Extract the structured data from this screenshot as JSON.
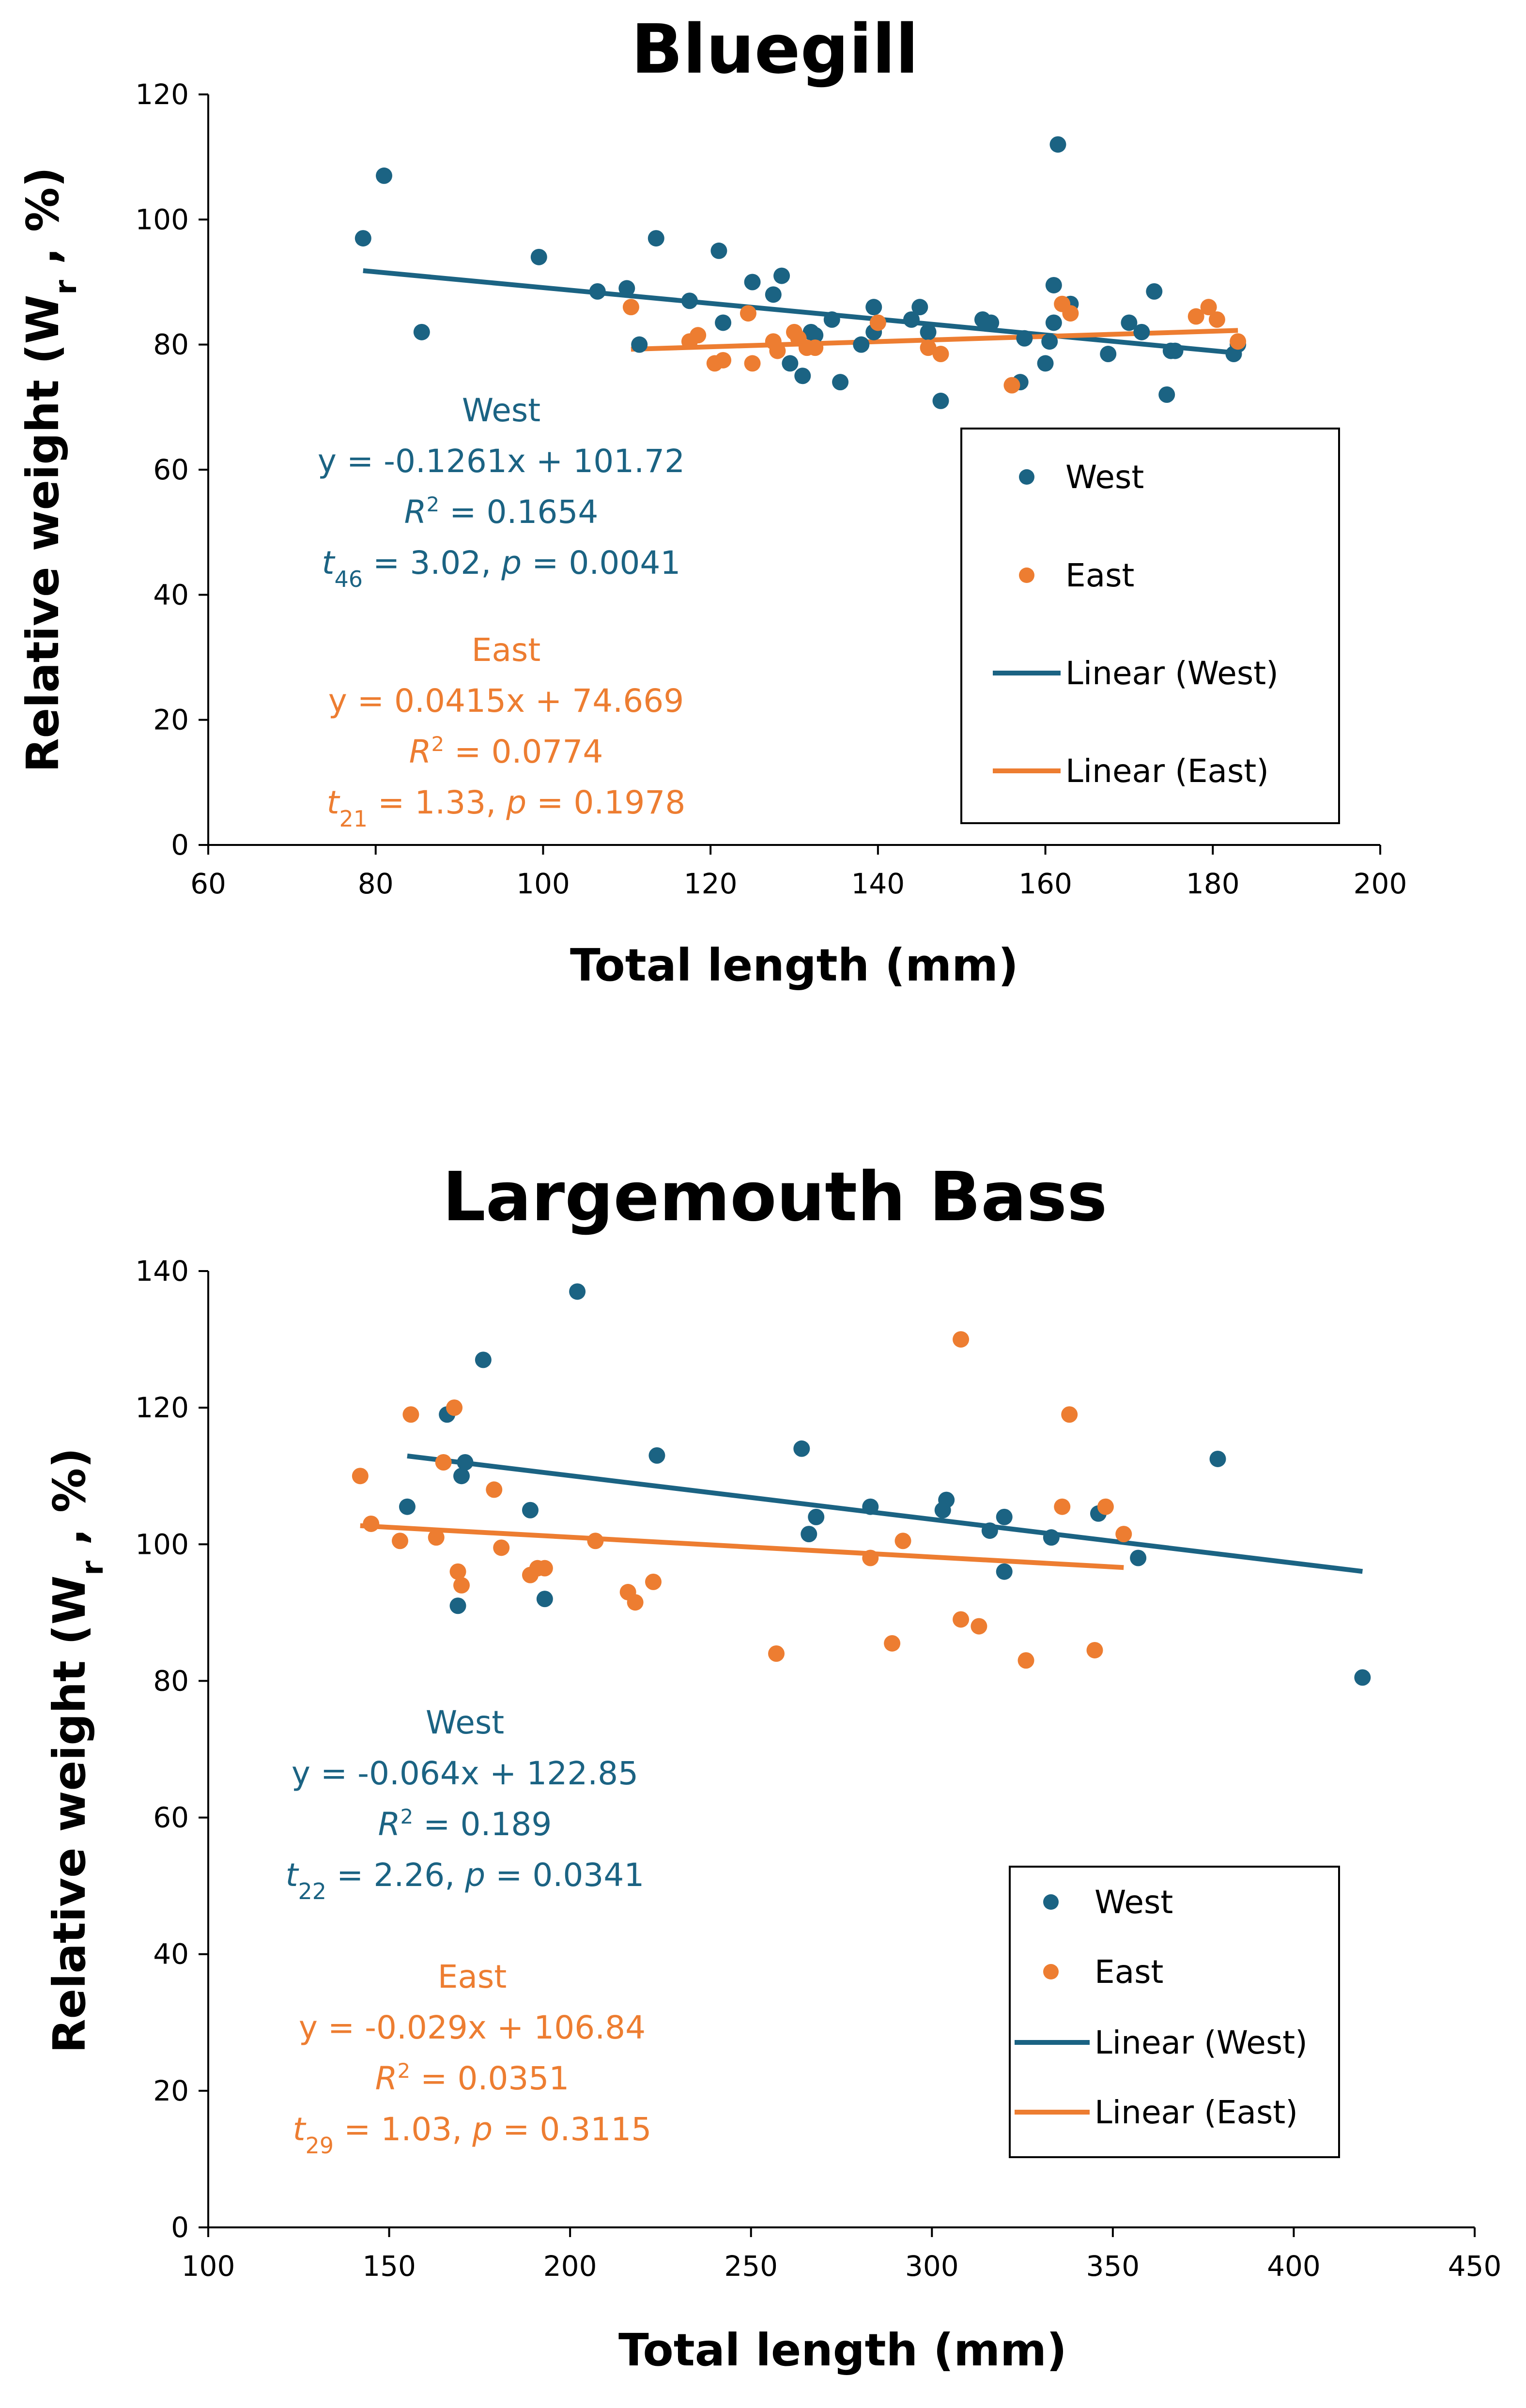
{
  "colors": {
    "west": "#1b6383",
    "east": "#ed7d31",
    "axis": "#000000"
  },
  "chart_data": [
    {
      "type": "scatter",
      "title": "Bluegill",
      "xlabel": "Total length (mm)",
      "ylabel_main": "Relative weight (W",
      "ylabel_sub": "r",
      "ylabel_tail": " , %)",
      "xlim": [
        60,
        200
      ],
      "ylim": [
        0,
        120
      ],
      "xticks": [
        "60",
        "80",
        "100",
        "120",
        "140",
        "160",
        "180",
        "200"
      ],
      "yticks": [
        "0",
        "20",
        "40",
        "60",
        "80",
        "100",
        "120"
      ],
      "xtick_values": [
        60,
        80,
        100,
        120,
        140,
        160,
        180,
        200
      ],
      "ytick_values": [
        0,
        20,
        40,
        60,
        80,
        100,
        120
      ],
      "legend": [
        "West",
        "East",
        "Linear (West)",
        "Linear (East)"
      ],
      "series": [
        {
          "name": "West",
          "x": [
            78.5,
            81,
            85.5,
            99.5,
            106.5,
            110,
            111.5,
            113.5,
            117.5,
            121,
            121.5,
            125,
            127.5,
            128.5,
            129.5,
            131,
            132,
            132.5,
            134.5,
            135.5,
            138,
            139.5,
            139.5,
            144,
            145,
            146,
            147.5,
            152.5,
            153.5,
            157,
            157.5,
            160,
            160.5,
            161,
            161,
            163,
            167.5,
            170,
            171.5,
            173,
            174.5,
            175,
            175.5,
            182.5,
            183,
            161.5
          ],
          "y": [
            97,
            107,
            82,
            94,
            88.5,
            89,
            80,
            97,
            87,
            95,
            83.5,
            90,
            88,
            91,
            77,
            75,
            82,
            81.5,
            84,
            74,
            80,
            82,
            86,
            84,
            86,
            82,
            71,
            84,
            83.5,
            74,
            81,
            77,
            80.5,
            83.5,
            89.5,
            86.5,
            78.5,
            83.5,
            82,
            88.5,
            72,
            79,
            79,
            78.5,
            80,
            112
          ]
        },
        {
          "name": "East",
          "x": [
            110.5,
            117.5,
            118.5,
            120.5,
            121.5,
            124.5,
            125,
            127.5,
            128,
            130,
            130.5,
            131.5,
            132.5,
            140,
            146,
            147.5,
            156,
            162,
            163,
            178,
            179.5,
            180.5,
            183
          ],
          "y": [
            86,
            80.5,
            81.5,
            77,
            77.5,
            85,
            77,
            80.5,
            79,
            82,
            81,
            79.5,
            79.5,
            83.5,
            79.5,
            78.5,
            73.5,
            86.5,
            85,
            84.5,
            86,
            84,
            80.5
          ]
        }
      ],
      "trendlines": [
        {
          "name": "Linear (West)",
          "slope": -0.1261,
          "intercept": 101.72,
          "x_range": [
            78.5,
            183
          ]
        },
        {
          "name": "Linear (East)",
          "slope": 0.0415,
          "intercept": 74.669,
          "x_range": [
            110.5,
            183
          ]
        }
      ],
      "annotations": {
        "west": {
          "name": "West",
          "eq": "y = -0.1261x + 101.72",
          "r2_label": "R",
          "r2_sup": "2",
          "r2_value": " = 0.1654",
          "t_label": "t",
          "t_sub": "46",
          "t_value": " = 3.02, ",
          "p_label": "p",
          "p_value": " = 0.0041"
        },
        "east": {
          "name": "East",
          "eq": "y = 0.0415x + 74.669",
          "r2_label": "R",
          "r2_sup": "2",
          "r2_value": " = 0.0774",
          "t_label": "t",
          "t_sub": "21",
          "t_value": " = 1.33, ",
          "p_label": "p",
          "p_value": " = 0.1978"
        }
      }
    },
    {
      "type": "scatter",
      "title": "Largemouth Bass",
      "xlabel": "Total length (mm)",
      "ylabel_main": "Relative weight (W",
      "ylabel_sub": "r",
      "ylabel_tail": " , %)",
      "xlim": [
        100,
        450
      ],
      "ylim": [
        0,
        140
      ],
      "xticks": [
        "100",
        "150",
        "200",
        "250",
        "300",
        "350",
        "400",
        "450"
      ],
      "yticks": [
        "0",
        "20",
        "40",
        "60",
        "80",
        "100",
        "120",
        "140"
      ],
      "xtick_values": [
        100,
        150,
        200,
        250,
        300,
        350,
        400,
        450
      ],
      "ytick_values": [
        0,
        20,
        40,
        60,
        80,
        100,
        120,
        140
      ],
      "legend": [
        "West",
        "East",
        "Linear (West)",
        "Linear (East)"
      ],
      "series": [
        {
          "name": "West",
          "x": [
            155,
            166,
            169,
            170,
            171,
            176,
            189,
            193,
            202,
            224,
            264,
            266,
            268,
            283,
            303,
            304,
            316,
            320,
            320,
            333,
            346,
            357,
            379,
            419
          ],
          "y": [
            105.5,
            119,
            91,
            110,
            112,
            127,
            105,
            92,
            137,
            113,
            114,
            101.5,
            104,
            105.5,
            105,
            106.5,
            102,
            104,
            96,
            101,
            104.5,
            98,
            112.5,
            80.5
          ]
        },
        {
          "name": "East",
          "x": [
            142,
            145,
            153,
            156,
            163,
            165,
            168,
            169,
            170,
            179,
            181,
            189,
            191,
            193,
            207,
            216,
            218,
            223,
            257,
            283,
            289,
            292,
            308,
            308,
            313,
            326,
            336,
            338,
            345,
            348,
            353
          ],
          "y": [
            110,
            103,
            100.5,
            119,
            101,
            112,
            120,
            96,
            94,
            108,
            99.5,
            95.5,
            96.5,
            96.5,
            100.5,
            93,
            91.5,
            94.5,
            84,
            98,
            85.5,
            100.5,
            130,
            89,
            88,
            83,
            105.5,
            119,
            84.5,
            105.5,
            101.5
          ]
        }
      ],
      "trendlines": [
        {
          "name": "Linear (West)",
          "slope": -0.064,
          "intercept": 122.85,
          "x_range": [
            155,
            419
          ]
        },
        {
          "name": "Linear (East)",
          "slope": -0.029,
          "intercept": 106.84,
          "x_range": [
            142,
            353
          ]
        }
      ],
      "annotations": {
        "west": {
          "name": "West",
          "eq": "y = -0.064x + 122.85",
          "r2_label": "R",
          "r2_sup": "2",
          "r2_value": " = 0.189",
          "t_label": "t",
          "t_sub": "22",
          "t_value": " = 2.26, ",
          "p_label": "p",
          "p_value": " = 0.0341"
        },
        "east": {
          "name": "East",
          "eq": "y = -0.029x + 106.84",
          "r2_label": "R",
          "r2_sup": "2",
          "r2_value": " = 0.0351",
          "t_label": "t",
          "t_sub": "29",
          "t_value": " = 1.03, ",
          "p_label": "p",
          "p_value": " = 0.3115"
        }
      }
    }
  ]
}
